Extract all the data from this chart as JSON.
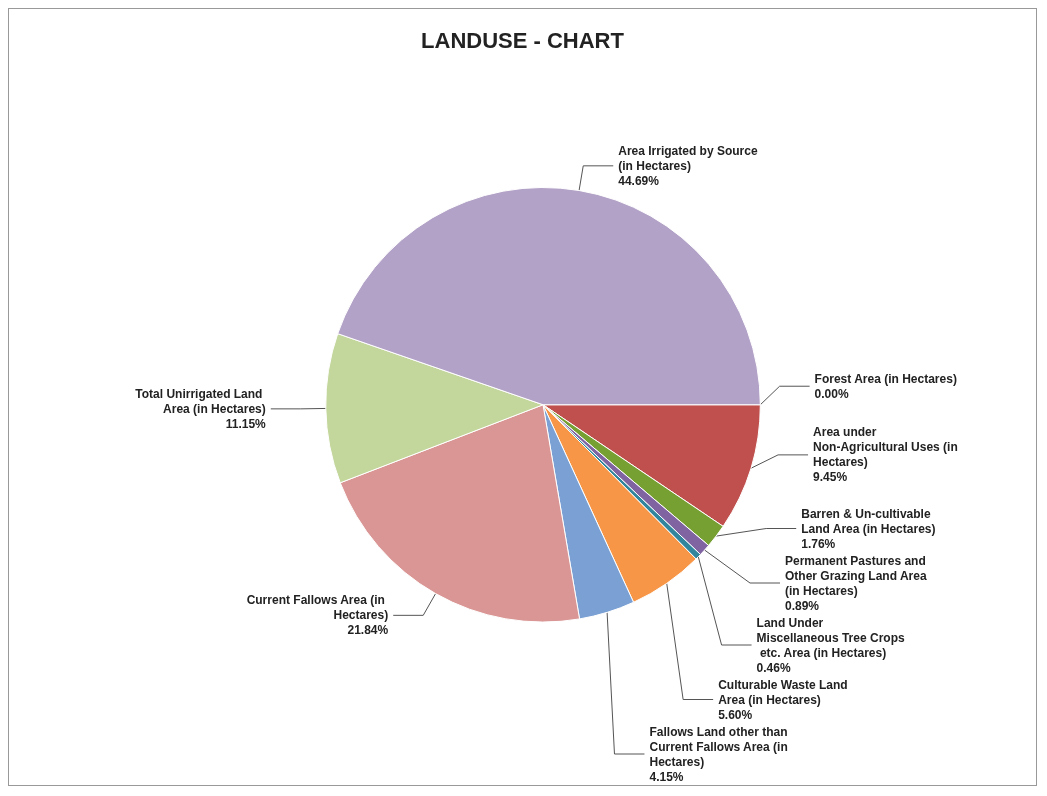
{
  "chart_data": {
    "type": "pie",
    "title": "LANDUSE - CHART",
    "categories": [
      "Forest Area (in Hectares)",
      "Area under Non-Agricultural Uses (in Hectares)",
      "Barren & Un-cultivable Land Area (in Hectares)",
      "Permanent Pastures and Other Grazing Land Area (in Hectares)",
      "Land Under Miscellaneous Tree Crops etc. Area (in Hectares)",
      "Culturable Waste Land Area (in Hectares)",
      "Fallows Land other than Current Fallows Area (in Hectares)",
      "Current Fallows Area (in Hectares)",
      "Total Unirrigated Land Area (in Hectares)",
      "Area Irrigated by Source (in Hectares)"
    ],
    "values": [
      0,
      9.45,
      1.76,
      0.89,
      0.46,
      5.6,
      4.15,
      21.84,
      11.15,
      44.69
    ],
    "value_labels": [
      "0.00%",
      "9.45%",
      "1.76%",
      "0.89%",
      "0.46%",
      "5.60%",
      "4.15%",
      "21.84%",
      "11.15%",
      "44.69%"
    ],
    "colors": [
      "#4f81bd",
      "#c0504d",
      "#77a033",
      "#8064a2",
      "#31859c",
      "#f79646",
      "#7ba0d4",
      "#d99694",
      "#c3d69b",
      "#b3a2c7"
    ],
    "legend": false
  }
}
